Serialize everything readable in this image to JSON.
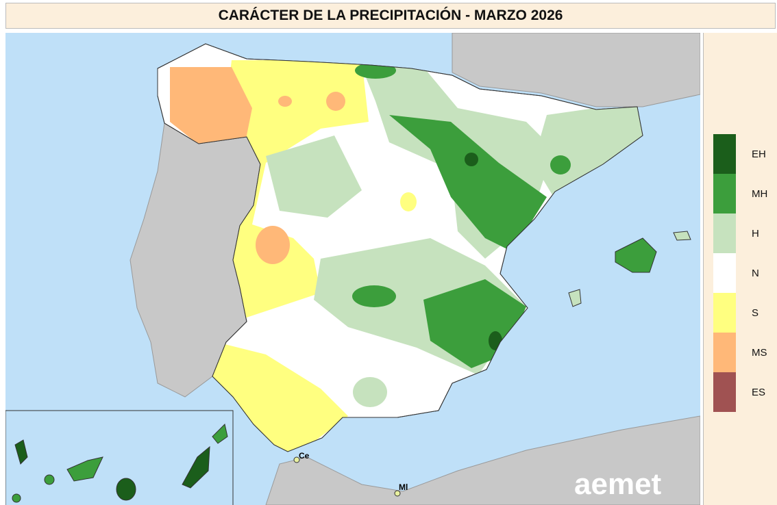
{
  "header": {
    "title": "CARÁCTER DE LA PRECIPITACIÓN - MARZO 2026"
  },
  "legend": {
    "items": [
      {
        "label": "EH",
        "color": "#1b5e1b"
      },
      {
        "label": "MH",
        "color": "#3c9e3c"
      },
      {
        "label": "H",
        "color": "#c6e2be"
      },
      {
        "label": "N",
        "color": "#ffffff"
      },
      {
        "label": "S",
        "color": "#ffff80"
      },
      {
        "label": "MS",
        "color": "#ffb878"
      },
      {
        "label": "ES",
        "color": "#a05252"
      }
    ]
  },
  "map": {
    "places": [
      "Ce",
      "Ml"
    ],
    "logo": "aemet"
  }
}
